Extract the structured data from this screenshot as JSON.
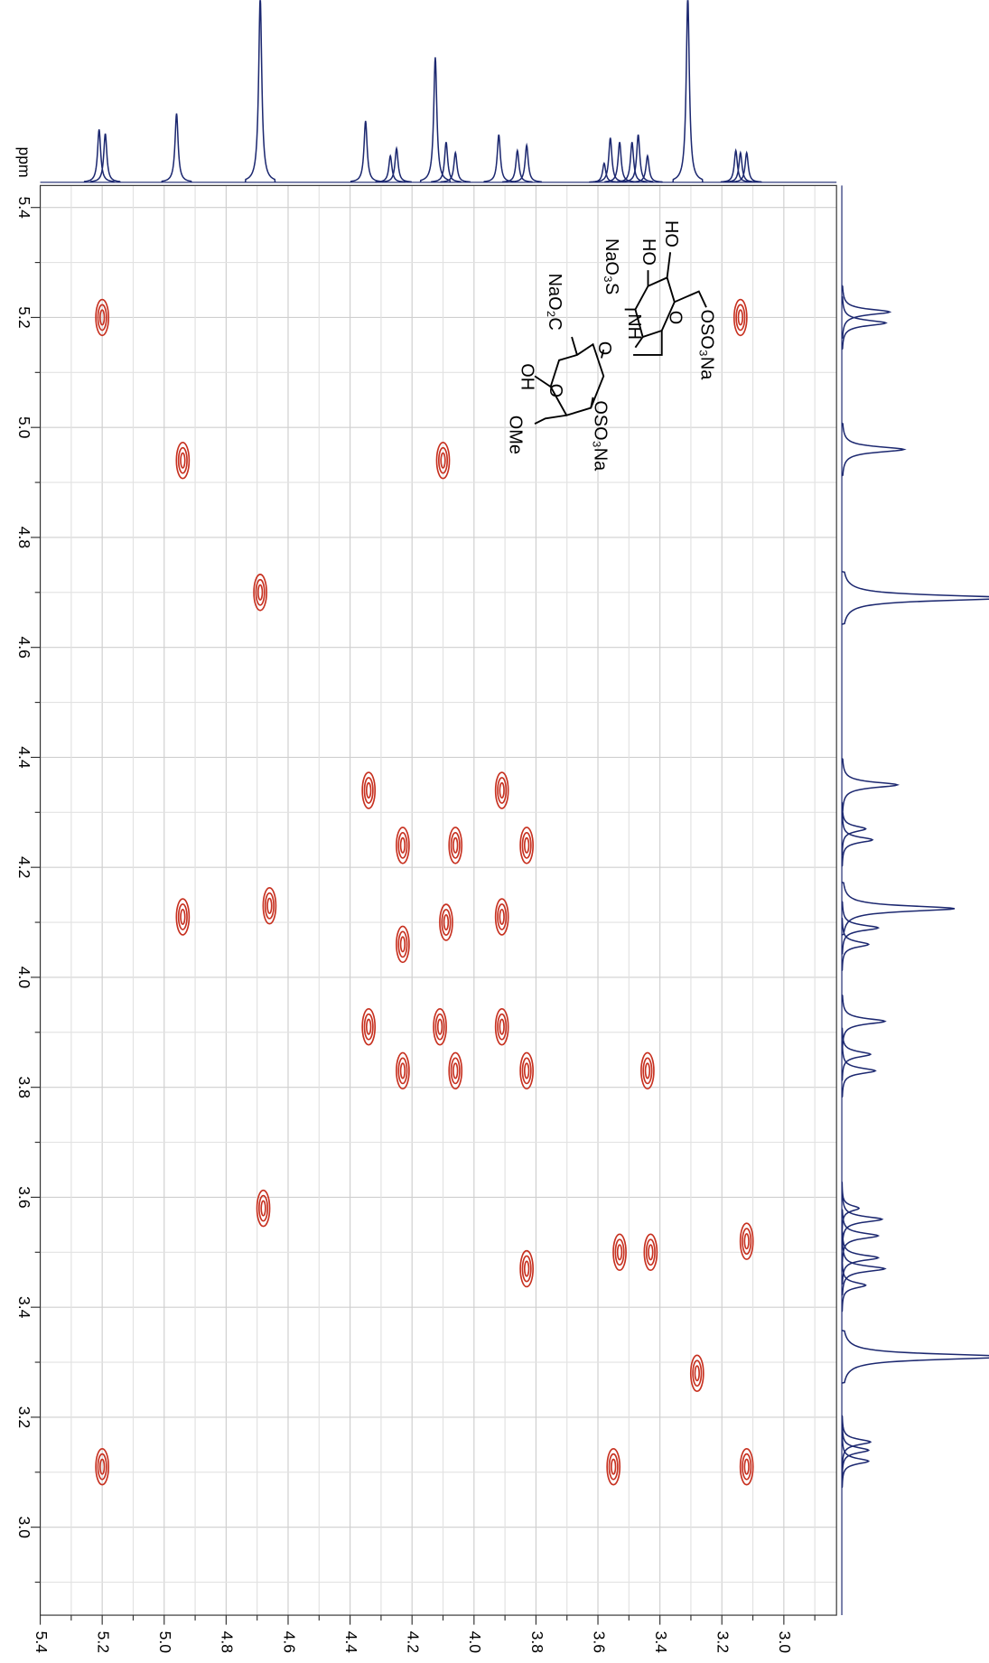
{
  "chart_data": {
    "type": "cosy",
    "y_unit": "ppm",
    "xlim": [
      5.4,
      2.83
    ],
    "ylim": [
      5.44,
      2.84
    ],
    "xticks": [
      5.4,
      5.2,
      {
        "value": 5,
        "label": "5.0"
      },
      4.8,
      4.6,
      4.4,
      4.2,
      {
        "value": 4,
        "label": "4.0"
      },
      3.8,
      3.6,
      3.4,
      3.2,
      {
        "value": 3,
        "label": "3.0"
      }
    ],
    "yticks": [
      5.4,
      5.2,
      {
        "value": 5,
        "label": "5.0"
      },
      4.8,
      4.6,
      4.4,
      4.2,
      {
        "value": 4,
        "label": "4.0"
      },
      3.8,
      3.6,
      3.4,
      3.2,
      {
        "value": 3,
        "label": "3.0"
      }
    ],
    "minor_ticks": [
      5.3,
      5.1,
      4.9,
      4.7,
      4.5,
      4.3,
      4.1,
      3.9,
      3.7,
      3.5,
      3.3,
      3.1,
      2.9
    ],
    "grid": true,
    "peak_color": "#c7301f",
    "trace_color": "#1c2870",
    "peaks": {
      "x": [
        5.2,
        3.14,
        4.94,
        4.1,
        4.69,
        4.34,
        3.91,
        4.23,
        4.06,
        3.83,
        4.94,
        4.66,
        4.23,
        4.09,
        3.91,
        4.34,
        4.11,
        3.91,
        4.23,
        4.06,
        3.83,
        3.44,
        4.68,
        3.53,
        3.43,
        3.83,
        3.12,
        3.28,
        5.2,
        3.55,
        3.12
      ],
      "y": [
        5.2,
        5.2,
        4.94,
        4.94,
        4.7,
        4.34,
        4.34,
        4.24,
        4.24,
        4.24,
        4.11,
        4.13,
        4.06,
        4.1,
        4.11,
        3.91,
        3.91,
        3.91,
        3.83,
        3.83,
        3.83,
        3.83,
        3.58,
        3.5,
        3.5,
        3.47,
        3.52,
        3.28,
        3.11,
        3.11,
        3.11
      ]
    },
    "projection": {
      "ppm": [
        5.21,
        5.19,
        4.96,
        4.69,
        4.35,
        4.27,
        4.25,
        4.125,
        4.09,
        4.06,
        3.92,
        3.86,
        3.83,
        3.58,
        3.56,
        3.53,
        3.49,
        3.47,
        3.44,
        3.31,
        3.155,
        3.14,
        3.12
      ],
      "intensity": [
        50,
        46,
        65,
        175,
        58,
        25,
        32,
        118,
        38,
        28,
        45,
        30,
        35,
        18,
        42,
        38,
        38,
        45,
        25,
        175,
        30,
        28,
        28
      ],
      "ylim": [
        0,
        155
      ]
    }
  },
  "molecule": {
    "labels": [
      "OSO₃Na",
      "O",
      "HO",
      "HO",
      "NaO₃S",
      "NH",
      "O",
      "NaO₂C",
      "O",
      "OH",
      "OSO₃Na",
      "OMe"
    ]
  }
}
